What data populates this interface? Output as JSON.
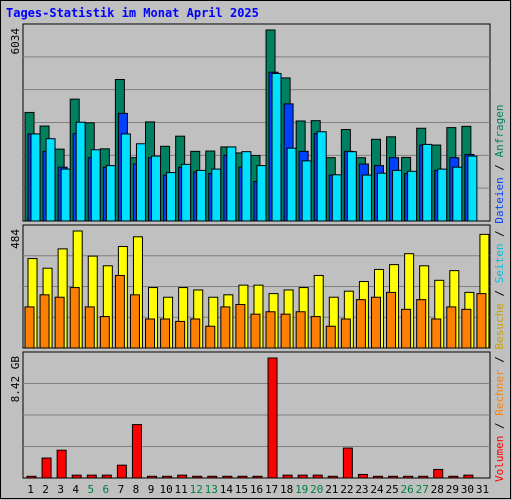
{
  "chart_data": {
    "type": "bar",
    "title": "Tages-Statistik im Monat April 2025",
    "title_color": "#0000ff",
    "background_color": "#c0c0c0",
    "plot_background": "#c0c0c0",
    "grid": true,
    "categories": [
      "1",
      "2",
      "3",
      "4",
      "5",
      "6",
      "7",
      "8",
      "9",
      "10",
      "11",
      "12",
      "13",
      "14",
      "15",
      "16",
      "17",
      "18",
      "19",
      "20",
      "21",
      "22",
      "23",
      "24",
      "25",
      "26",
      "27",
      "28",
      "29",
      "30",
      "31"
    ],
    "weekend_days": [
      "5",
      "6",
      "12",
      "13",
      "19",
      "20",
      "26",
      "27"
    ],
    "weekend_color": "#008040",
    "weekday_color": "#000000",
    "panels": [
      {
        "name": "top",
        "ylabel_value": "6034",
        "ylim": [
          0,
          6034
        ],
        "series": [
          {
            "name": "Anfragen",
            "color": "#008060",
            "values": [
              3430,
              3000,
              2270,
              3850,
              3100,
              2280,
              4470,
              2000,
              3130,
              2360,
              2680,
              2200,
              2210,
              2340,
              2150,
              2070,
              6034,
              4520,
              3160,
              3170,
              2000,
              2890,
              2000,
              2580,
              2660,
              2010,
              2930,
              2400,
              2950,
              2990,
              null
            ]
          },
          {
            "name": "Dateien",
            "color": "#0040ff",
            "values": [
              2750,
              2200,
              1700,
              2760,
              2000,
              1700,
              3400,
              1800,
              2000,
              1450,
              1700,
              1550,
              1500,
              2080,
              1700,
              1250,
              4700,
              3700,
              2200,
              2760,
              1450,
              2200,
              1800,
              1750,
              2000,
              1500,
              2400,
              1600,
              2000,
              2100,
              null
            ]
          },
          {
            "name": "Seiten",
            "color": "#00e0ff",
            "values": [
              2750,
              2600,
              1640,
              3120,
              2250,
              1750,
              2750,
              2440,
              2050,
              1530,
              1790,
              1600,
              1640,
              2340,
              2190,
              1750,
              4660,
              2300,
              1900,
              2820,
              1460,
              2190,
              1450,
              1510,
              1600,
              1570,
              2420,
              1640,
              1700,
              2050,
              null
            ]
          }
        ]
      },
      {
        "name": "middle",
        "ylabel_value": "484",
        "ylim": [
          0,
          484
        ],
        "series": [
          {
            "name": "Besuche",
            "color": "#ffff00",
            "values": [
              370,
              330,
              410,
              484,
              380,
              340,
              420,
              460,
              250,
              210,
              250,
              240,
              210,
              220,
              260,
              260,
              225,
              240,
              250,
              300,
              210,
              235,
              275,
              325,
              345,
              390,
              340,
              280,
              320,
              230,
              470
            ]
          },
          {
            "name": "Rechner",
            "color": "#ff8000",
            "values": [
              170,
              220,
              210,
              250,
              170,
              130,
              300,
              220,
              120,
              120,
              110,
              120,
              90,
              170,
              180,
              140,
              150,
              140,
              150,
              130,
              90,
              120,
              200,
              210,
              230,
              160,
              200,
              120,
              170,
              160,
              225
            ]
          }
        ]
      },
      {
        "name": "bottom",
        "ylabel_value": "8.42 GB",
        "ylim": [
          0,
          8.42
        ],
        "series": [
          {
            "name": "Volumen",
            "color": "#ff0000",
            "values": [
              0.12,
              1.4,
              1.95,
              0.2,
              0.2,
              0.2,
              0.9,
              3.75,
              0.12,
              0.12,
              0.2,
              0.12,
              0.12,
              0.12,
              0.12,
              0.12,
              8.42,
              0.2,
              0.2,
              0.2,
              0.12,
              2.1,
              0.25,
              0.12,
              0.12,
              0.12,
              0.12,
              0.6,
              0.12,
              0.2,
              null
            ]
          }
        ]
      }
    ],
    "right_legend": [
      {
        "label": "Volumen",
        "color": "#ff0000"
      },
      {
        "label": "Rechner",
        "color": "#ff8000"
      },
      {
        "label": "Besuche",
        "color": "#c8a000"
      },
      {
        "label": "Seiten",
        "color": "#00c0e0"
      },
      {
        "label": "Dateien",
        "color": "#0040ff"
      },
      {
        "label": "Anfragen",
        "color": "#008060"
      }
    ],
    "legend_separator": " / ",
    "legend_placement": "right, vertical"
  }
}
